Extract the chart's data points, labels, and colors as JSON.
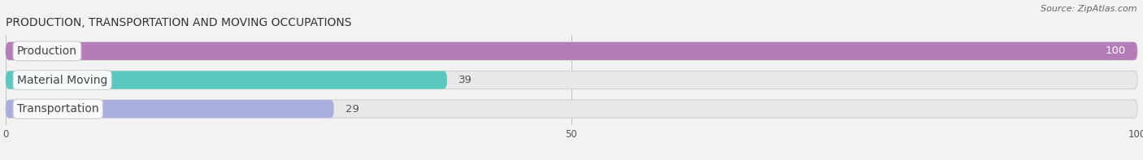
{
  "title": "PRODUCTION, TRANSPORTATION AND MOVING OCCUPATIONS",
  "source": "Source: ZipAtlas.com",
  "categories": [
    "Production",
    "Material Moving",
    "Transportation"
  ],
  "values": [
    100,
    39,
    29
  ],
  "bar_colors": [
    "#b57db8",
    "#5bc8c0",
    "#a9aedd"
  ],
  "bg_color": "#f2f2f2",
  "bar_bg_color": "#e8e8e8",
  "xlim": [
    0,
    100
  ],
  "xticks": [
    0,
    50,
    100
  ],
  "title_fontsize": 10,
  "label_fontsize": 10,
  "value_fontsize": 9.5,
  "bar_height": 0.62,
  "figsize": [
    14.06,
    1.97
  ],
  "dpi": 100
}
